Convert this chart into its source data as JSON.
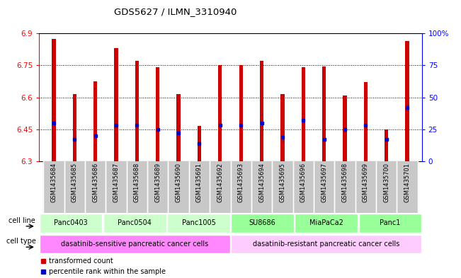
{
  "title": "GDS5627 / ILMN_3310940",
  "ylim": [
    6.3,
    6.9
  ],
  "ylim_right": [
    0,
    100
  ],
  "yticks_left": [
    6.3,
    6.45,
    6.6,
    6.75,
    6.9
  ],
  "yticks_right": [
    0,
    25,
    50,
    75,
    100
  ],
  "ytick_labels_right": [
    "0",
    "25",
    "50",
    "75",
    "100%"
  ],
  "bar_bottom": 6.3,
  "samples": [
    "GSM1435684",
    "GSM1435685",
    "GSM1435686",
    "GSM1435687",
    "GSM1435688",
    "GSM1435689",
    "GSM1435690",
    "GSM1435691",
    "GSM1435692",
    "GSM1435693",
    "GSM1435694",
    "GSM1435695",
    "GSM1435696",
    "GSM1435697",
    "GSM1435698",
    "GSM1435699",
    "GSM1435700",
    "GSM1435701"
  ],
  "bar_tops": [
    6.875,
    6.615,
    6.675,
    6.83,
    6.77,
    6.74,
    6.615,
    6.465,
    6.75,
    6.75,
    6.77,
    6.615,
    6.74,
    6.745,
    6.61,
    6.67,
    6.45,
    6.865
  ],
  "percentile_values": [
    30,
    17,
    20,
    28,
    28,
    25,
    22,
    14,
    28,
    28,
    30,
    19,
    32,
    17,
    25,
    28,
    17,
    42
  ],
  "bar_color": "#cc0000",
  "percentile_color": "#0000cc",
  "cell_lines": [
    {
      "label": "Panc0403",
      "start": 0,
      "end": 3,
      "color": "#ccffcc"
    },
    {
      "label": "Panc0504",
      "start": 3,
      "end": 6,
      "color": "#ccffcc"
    },
    {
      "label": "Panc1005",
      "start": 6,
      "end": 9,
      "color": "#ccffcc"
    },
    {
      "label": "SU8686",
      "start": 9,
      "end": 12,
      "color": "#99ff99"
    },
    {
      "label": "MiaPaCa2",
      "start": 12,
      "end": 15,
      "color": "#99ff99"
    },
    {
      "label": "Panc1",
      "start": 15,
      "end": 18,
      "color": "#99ff99"
    }
  ],
  "cell_types": [
    {
      "label": "dasatinib-sensitive pancreatic cancer cells",
      "start": 0,
      "end": 9,
      "color": "#ff88ff"
    },
    {
      "label": "dasatinib-resistant pancreatic cancer cells",
      "start": 9,
      "end": 18,
      "color": "#ffccff"
    }
  ],
  "legend_items": [
    {
      "label": "transformed count",
      "color": "#cc0000"
    },
    {
      "label": "percentile rank within the sample",
      "color": "#0000cc"
    }
  ],
  "grid_linestyle": "dotted",
  "bar_width": 0.18,
  "bg_color": "#ffffff"
}
